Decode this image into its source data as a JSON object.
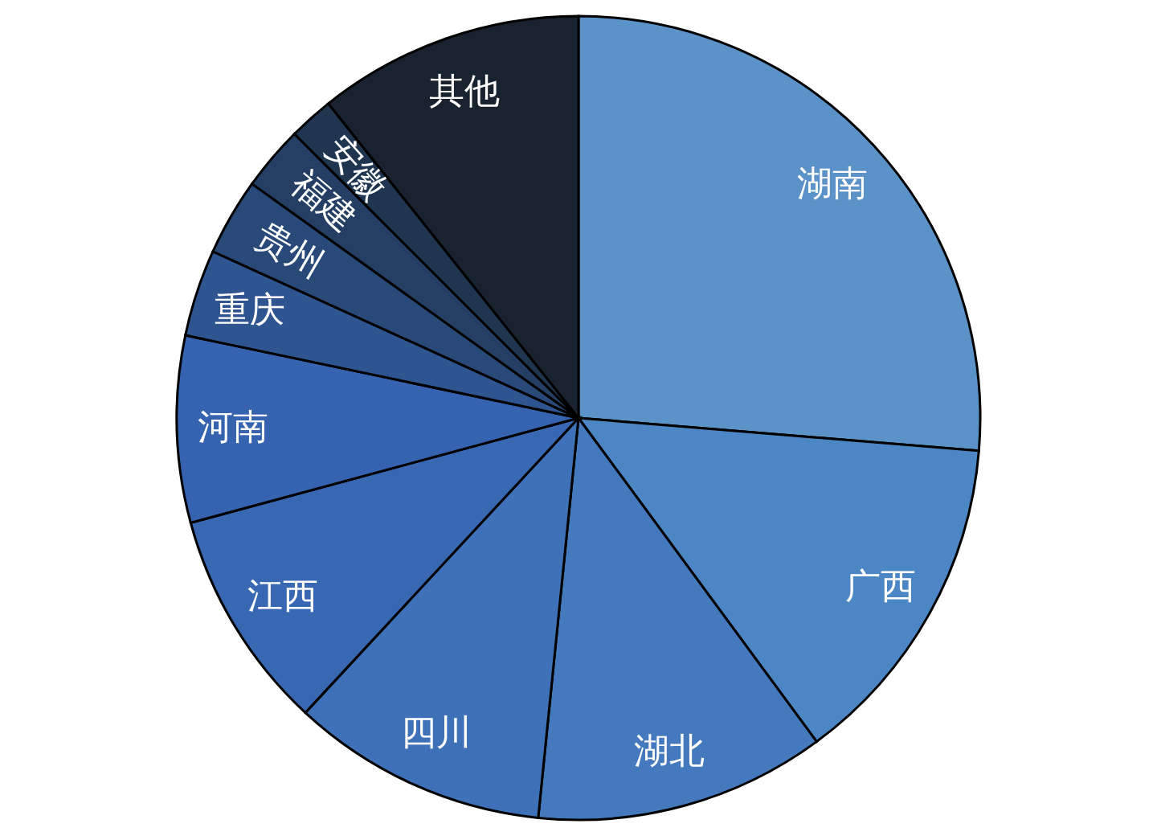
{
  "chart_data": {
    "type": "pie",
    "categories": [
      "湖南",
      "广西",
      "湖北",
      "四川",
      "江西",
      "河南",
      "重庆",
      "贵州",
      "福建",
      "安徽",
      "其他"
    ],
    "values": [
      26.3,
      13.6,
      11.7,
      10.3,
      8.9,
      7.5,
      3.5,
      3.1,
      2.6,
      1.8,
      10.7
    ],
    "colors": [
      "#5b92c8",
      "#4d86c4",
      "#4479bd",
      "#3e71b8",
      "#3868b2",
      "#3563b0",
      "#2e5590",
      "#294a78",
      "#243f63",
      "#1f3550",
      "#19222f"
    ]
  }
}
